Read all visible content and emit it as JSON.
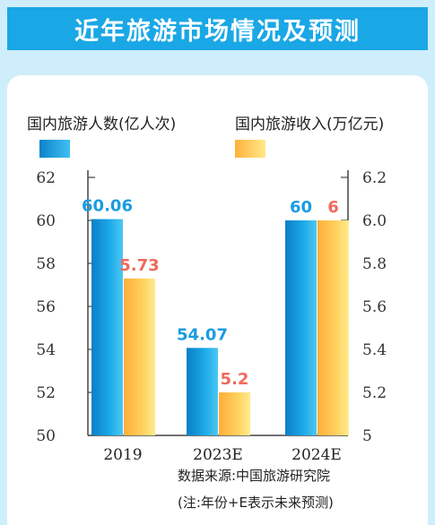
{
  "header": {
    "title": "近年旅游市场情况及预测"
  },
  "footer": {
    "source": "数据来源:中国旅游研究院",
    "note": "(注:年份+E表示未来预测)"
  },
  "colors": {
    "blue": "#1aa7e6",
    "orange": "#ffc64f"
  },
  "chart_data": {
    "type": "bar",
    "categories": [
      "2019",
      "2023E",
      "2024E"
    ],
    "series": [
      {
        "name": "国内旅游人数(亿人次)",
        "values": [
          60.06,
          54.07,
          60
        ],
        "labels": [
          "60.06",
          "54.07",
          "60"
        ],
        "axis": "left",
        "color": "#1aa7e6"
      },
      {
        "name": "国内旅游收入(万亿元)",
        "values": [
          5.73,
          5.2,
          6
        ],
        "labels": [
          "5.73",
          "5.2",
          "6"
        ],
        "axis": "right",
        "color": "#ffc64f"
      }
    ],
    "y_left": {
      "ylim": [
        50,
        62
      ],
      "ticks": [
        "50",
        "52",
        "54",
        "56",
        "58",
        "60",
        "62"
      ]
    },
    "y_right": {
      "ylim": [
        5,
        6.2
      ],
      "ticks": [
        "5",
        "5.2",
        "5.4",
        "5.6",
        "5.8",
        "6.0",
        "6.2"
      ]
    },
    "grid": false,
    "legend": "top"
  }
}
